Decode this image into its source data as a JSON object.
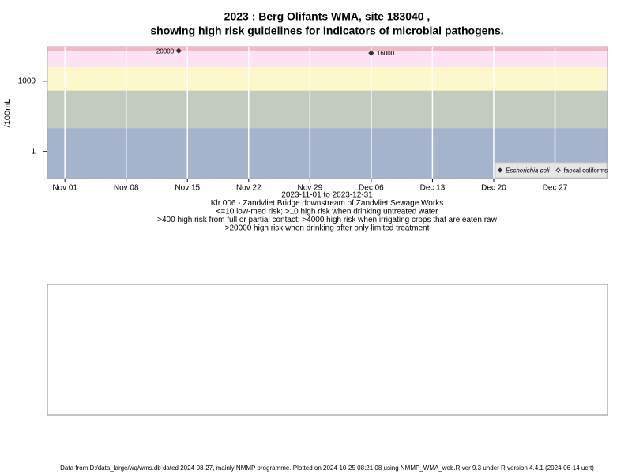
{
  "chart_data": {
    "type": "scatter",
    "title": "2023 : Berg Olifants WMA, site 183040 ,",
    "subtitle": "showing high risk guidelines for indicators of microbial pathogens.",
    "y_label": "/100mL",
    "x_label_lines": [
      "2023-11-01 to 2023-12-31",
      "Klr 006 - Zandvliet Bridge downstream of Zandvliet Sewage Works",
      "<=10 low-med risk; >10 high risk when drinking untreated water",
      ">400 high risk from full or partial contact; >4000 high risk when irrigating crops that are eaten raw",
      ">20000 high risk when drinking after only limited treatment"
    ],
    "log_y": true,
    "ylim": [
      0.07,
      30000
    ],
    "yticks": [
      1,
      1000
    ],
    "xlim": [
      "2023-10-30",
      "2024-01-02"
    ],
    "xticks": [
      {
        "value": "2023-11-01",
        "label": "Nov 01"
      },
      {
        "value": "2023-11-08",
        "label": "Nov 08"
      },
      {
        "value": "2023-11-15",
        "label": "Nov 15"
      },
      {
        "value": "2023-11-22",
        "label": "Nov 22"
      },
      {
        "value": "2023-11-29",
        "label": "Nov 29"
      },
      {
        "value": "2023-12-06",
        "label": "Dec 06"
      },
      {
        "value": "2023-12-13",
        "label": "Dec 13"
      },
      {
        "value": "2023-12-20",
        "label": "Dec 20"
      },
      {
        "value": "2023-12-27",
        "label": "Dec 27"
      }
    ],
    "grid": true,
    "thresholds": [
      10,
      400,
      4000,
      20000
    ],
    "band_colors": [
      "#a3b4cc",
      "#c3cbbf",
      "#fdf7c9",
      "#fde1f5",
      "#f7b6c4"
    ],
    "legend_position": "bottom-right",
    "series": [
      {
        "name": "Escherichia coli",
        "color": "#333333",
        "marker": "filled",
        "x": [
          "2023-11-14",
          "2023-12-06"
        ],
        "values": [
          20000,
          16000
        ]
      },
      {
        "name": "faecal coliforms",
        "color": "#333333",
        "marker": "open",
        "x": [],
        "values": []
      }
    ],
    "footer": "Data from D:/data_large/wq/wms.db dated 2024-08-27, mainly NMMP programme. Plotted on 2024-10-25 08:21:08 using NMMP_WMA_web.R ver 9.3 under R version 4.4.1 (2024-06-14 ucrt)"
  }
}
